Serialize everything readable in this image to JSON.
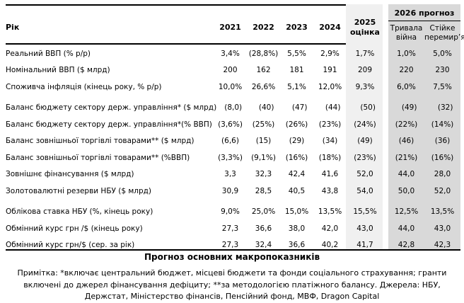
{
  "table": {
    "header": {
      "row_label": "Рік",
      "years": [
        "2021",
        "2022",
        "2023",
        "2024"
      ],
      "estimate_col": "2025 оцінка",
      "forecast_group": "2026 прогноз",
      "forecast_scenarios": [
        "Тривала війна",
        "Стійке перемир’я"
      ]
    },
    "rows": [
      {
        "label": "Реальний ВВП (% р/р)",
        "values": [
          "3,4%",
          "(28,8%)",
          "5,5%",
          "2,9%",
          "1,7%",
          "1,0%",
          "5,0%"
        ]
      },
      {
        "label": "Номінальний ВВП ($ млрд)",
        "values": [
          "200",
          "162",
          "181",
          "191",
          "209",
          "220",
          "230"
        ]
      },
      {
        "label": "Споживча інфляція (кінець року, % р/р)",
        "values": [
          "10,0%",
          "26,6%",
          "5,1%",
          "12,0%",
          "9,3%",
          "6,0%",
          "7,5%"
        ]
      },
      {
        "label": "Баланс бюджету сектору держ. управління* ($ млрд)",
        "values": [
          "(8,0)",
          "(40)",
          "(47)",
          "(44)",
          "(50)",
          "(49)",
          "(32)"
        ]
      },
      {
        "label": "Баланс бюджету сектору держ. управління*(% ВВП)",
        "values": [
          "(3,6%)",
          "(25%)",
          "(26%)",
          "(23%)",
          "(24%)",
          "(22%)",
          "(14%)"
        ]
      },
      {
        "label": "Баланс зовнішньої торгівлі товарами** ($ млрд)",
        "values": [
          "(6,6)",
          "(15)",
          "(29)",
          "(34)",
          "(49)",
          "(46)",
          "(36)"
        ]
      },
      {
        "label": "Баланс зовнішньої торгівлі товарами** (%ВВП)",
        "values": [
          "(3,3%)",
          "(9,1%)",
          "(16%)",
          "(18%)",
          "(23%)",
          "(21%)",
          "(16%)"
        ]
      },
      {
        "label": "Зовнішнє фінансування ($ млрд)",
        "values": [
          "3,3",
          "32,3",
          "42,4",
          "41,6",
          "52,0",
          "44,0",
          "28,0"
        ]
      },
      {
        "label": "Золотовалютні резерви НБУ ($ млрд)",
        "values": [
          "30,9",
          "28,5",
          "40,5",
          "43,8",
          "54,0",
          "50,0",
          "52,0"
        ]
      },
      {
        "label": "Облікова ставка НБУ (%, кінець року)",
        "values": [
          "9,0%",
          "25,0%",
          "15,0%",
          "13,5%",
          "15,5%",
          "12,5%",
          "13,5%"
        ]
      },
      {
        "label": "Обмінний курс грн /$ (кінець року)",
        "values": [
          "27,3",
          "36,6",
          "38,0",
          "42,0",
          "43,0",
          "44,0",
          "43,0"
        ]
      },
      {
        "label": "Обмінний курс грн/$ (сер. за рік)",
        "values": [
          "27,3",
          "32,4",
          "36,6",
          "40,2",
          "41,7",
          "42,8",
          "42,3"
        ]
      }
    ],
    "caption": "Прогноз основних макропоказників",
    "footnote": "Примітка: *включає центральний бюджет, місцеві бюджети та фонди соціального страхування; гранти включені до джерел фінансування дефіциту; **за методологією платіжного балансу. Джерела: НБУ, Держстат, Міністерство фінансів, Пенсійний фонд, МВФ, Dragon Capital"
  },
  "colors": {
    "estimate_column_bg": "#f0f0f0",
    "forecast_column_bg": "#d9d9d9",
    "rule": "#000000"
  }
}
